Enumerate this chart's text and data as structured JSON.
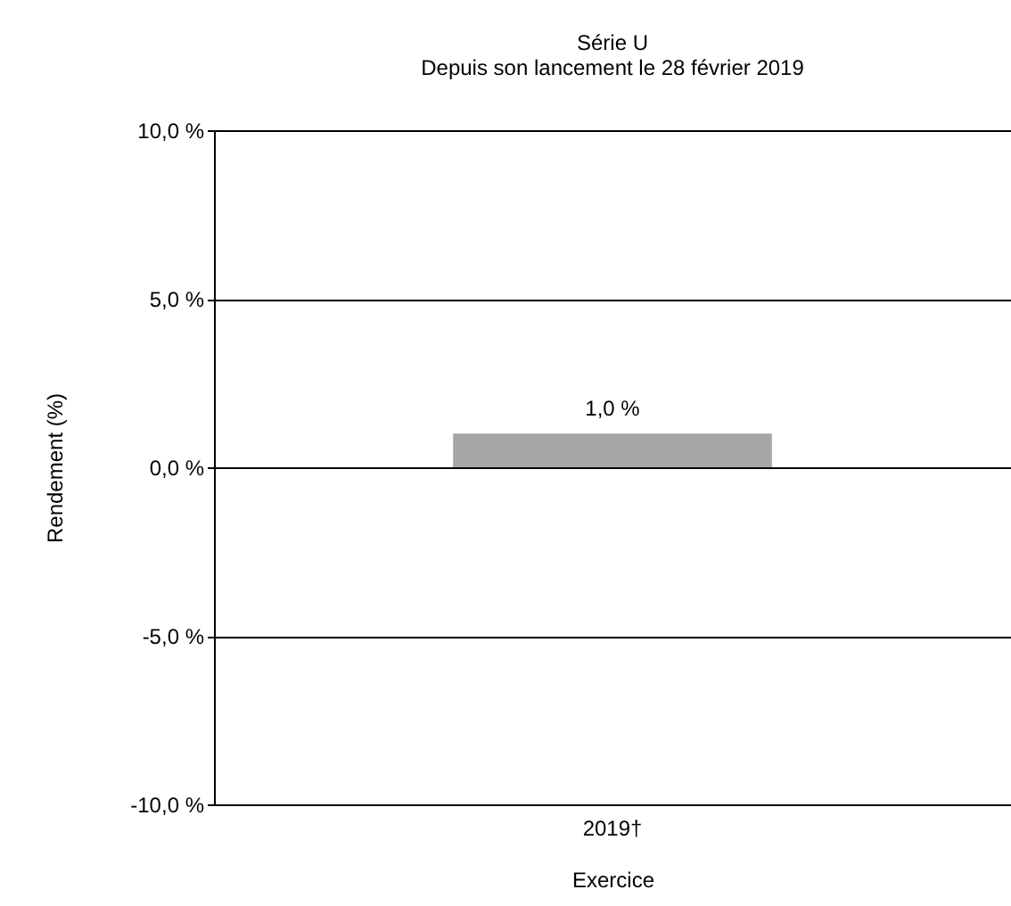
{
  "chart_data": {
    "type": "bar",
    "title": "Série U",
    "subtitle": "Depuis son lancement  le 28 février 2019",
    "xlabel": "Exercice",
    "ylabel": "Rendement  (%)",
    "categories": [
      "2019†"
    ],
    "values": [
      1.0
    ],
    "value_labels": [
      "1,0 %"
    ],
    "color": "#a6a6a6",
    "ylim": [
      -10,
      10
    ],
    "yticks": [
      {
        "value": -10,
        "label": "-10,0 %"
      },
      {
        "value": -5,
        "label": "-5,0 %"
      },
      {
        "value": 0,
        "label": "0,0 %"
      },
      {
        "value": 5,
        "label": "5,0 %"
      },
      {
        "value": 10,
        "label": "10,0 %"
      }
    ],
    "grid": "y"
  }
}
